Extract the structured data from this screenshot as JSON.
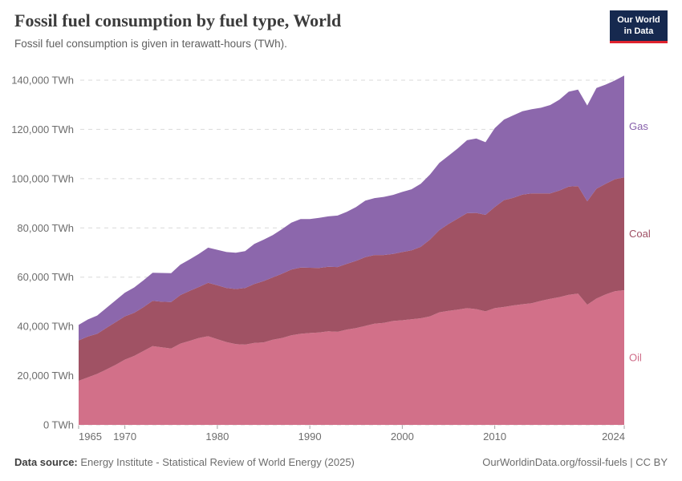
{
  "header": {
    "title": "Fossil fuel consumption by fuel type, World",
    "subtitle": "Fossil fuel consumption is given in terawatt-hours (TWh).",
    "logo": {
      "line1": "Our World",
      "line2": "in Data",
      "bg_color": "#16294f",
      "accent_color": "#e0232e"
    }
  },
  "chart_data": {
    "type": "area",
    "stacked": true,
    "title": "Fossil fuel consumption by fuel type, World",
    "unit": "TWh",
    "xlabel": "",
    "ylabel": "TWh",
    "xlim": [
      1965,
      2024
    ],
    "ylim": [
      0,
      140000
    ],
    "grid": "horizontal-dashed",
    "legend_position": "right-of-plot",
    "x": [
      1965,
      1966,
      1967,
      1968,
      1969,
      1970,
      1971,
      1972,
      1973,
      1974,
      1975,
      1976,
      1977,
      1978,
      1979,
      1980,
      1981,
      1982,
      1983,
      1984,
      1985,
      1986,
      1987,
      1988,
      1989,
      1990,
      1991,
      1992,
      1993,
      1994,
      1995,
      1996,
      1997,
      1998,
      1999,
      2000,
      2001,
      2002,
      2003,
      2004,
      2005,
      2006,
      2007,
      2008,
      2009,
      2010,
      2011,
      2012,
      2013,
      2014,
      2015,
      2016,
      2017,
      2018,
      2019,
      2020,
      2021,
      2022,
      2023,
      2024
    ],
    "series": [
      {
        "name": "Oil",
        "color": "#d27089",
        "label_color": "#cf6d89",
        "values": [
          17900,
          19300,
          20700,
          22500,
          24400,
          26500,
          28000,
          30000,
          32000,
          31500,
          31000,
          33000,
          34100,
          35300,
          36000,
          34800,
          33600,
          32800,
          32600,
          33300,
          33500,
          34600,
          35300,
          36400,
          37000,
          37300,
          37500,
          38000,
          37800,
          38700,
          39300,
          40200,
          41100,
          41400,
          42200,
          42500,
          42900,
          43300,
          44100,
          45700,
          46300,
          46800,
          47400,
          47000,
          46100,
          47400,
          47900,
          48500,
          49000,
          49400,
          50400,
          51200,
          51900,
          52800,
          53300,
          48800,
          51300,
          53000,
          54300,
          54700
        ]
      },
      {
        "name": "Coal",
        "color": "#a05264",
        "label_color": "#9e4e63",
        "values": [
          16400,
          16600,
          16300,
          16900,
          17300,
          17600,
          17500,
          17800,
          18400,
          18500,
          18900,
          19700,
          20300,
          20700,
          21700,
          21900,
          22000,
          22400,
          23000,
          23900,
          24900,
          25300,
          26100,
          26700,
          26900,
          26500,
          26200,
          26200,
          26300,
          26700,
          27300,
          27900,
          27900,
          27600,
          27200,
          27700,
          28000,
          29000,
          31200,
          33400,
          35300,
          37000,
          38600,
          39100,
          39200,
          41100,
          43400,
          43700,
          44500,
          44600,
          43600,
          42800,
          43300,
          44000,
          43700,
          42000,
          44600,
          44900,
          45500,
          45800
        ]
      },
      {
        "name": "Gas",
        "color": "#8c67ac",
        "label_color": "#8760ab",
        "values": [
          6300,
          6900,
          7400,
          8100,
          8900,
          9600,
          10300,
          10900,
          11400,
          11700,
          11700,
          12400,
          12800,
          13400,
          14300,
          14400,
          14600,
          14700,
          15000,
          16300,
          16800,
          17200,
          18100,
          19000,
          19700,
          19800,
          20400,
          20500,
          20900,
          21100,
          21900,
          23000,
          23100,
          23600,
          24000,
          24400,
          24800,
          25600,
          26400,
          27300,
          27700,
          28500,
          29600,
          30200,
          29500,
          32000,
          32700,
          33500,
          33900,
          34200,
          34800,
          35900,
          36900,
          38500,
          39200,
          38900,
          40900,
          40300,
          40100,
          41400
        ]
      }
    ],
    "y_ticks": [
      {
        "value": 0,
        "label": "0 TWh"
      },
      {
        "value": 20000,
        "label": "20,000 TWh"
      },
      {
        "value": 40000,
        "label": "40,000 TWh"
      },
      {
        "value": 60000,
        "label": "60,000 TWh"
      },
      {
        "value": 80000,
        "label": "80,000 TWh"
      },
      {
        "value": 100000,
        "label": "100,000 TWh"
      },
      {
        "value": 120000,
        "label": "120,000 TWh"
      },
      {
        "value": 140000,
        "label": "140,000 TWh"
      }
    ],
    "x_ticks": [
      {
        "value": 1965,
        "label": "1965"
      },
      {
        "value": 1970,
        "label": "1970"
      },
      {
        "value": 1980,
        "label": "1980"
      },
      {
        "value": 1990,
        "label": "1990"
      },
      {
        "value": 2000,
        "label": "2000"
      },
      {
        "value": 2010,
        "label": "2010"
      },
      {
        "value": 2024,
        "label": "2024"
      }
    ]
  },
  "footer": {
    "source_label": "Data source:",
    "source_text": " Energy Institute - Statistical Review of World Energy (2025)",
    "link": "OurWorldinData.org/fossil-fuels | CC BY"
  }
}
